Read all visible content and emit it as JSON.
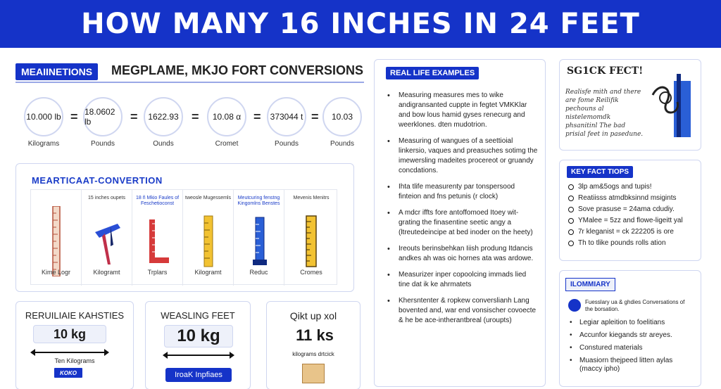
{
  "page_title": "HOW MANY 16 INCHES IN 24 FEET",
  "section": {
    "tag": "MEAIINETIONS",
    "title": "MEGPLAME, MKJO FORT CONVERSIONS"
  },
  "conversions": [
    {
      "value": "10.000 lb",
      "label": "Kilograms"
    },
    {
      "value": "18.0602 lb",
      "label": "Pounds"
    },
    {
      "value": "1622.93",
      "label": "Ounds"
    },
    {
      "value": "10.08 α",
      "label": "Cromet"
    },
    {
      "value": "373044 t",
      "label": "Pounds"
    },
    {
      "value": "10.03",
      "label": "Pounds"
    }
  ],
  "equals_sign": "=",
  "chart_panel": {
    "title": "MEARTICAAT-CONVERTION",
    "columns": [
      {
        "top": "",
        "bottom": "Kime Logr"
      },
      {
        "top": "15 inches oupets",
        "bottom": "Kilogramt"
      },
      {
        "top": "18 ñ Mkio Faules of Feschetioconst",
        "bottom": "Trplars"
      },
      {
        "top": "tweosle Mugessemls",
        "bottom": "Kilogramt"
      },
      {
        "top": "Meutcuring fenstng Kingomlns Benstes",
        "bottom": "Reduc"
      },
      {
        "top": "Mevenis Menitrs",
        "bottom": "Cromes"
      }
    ]
  },
  "cards": {
    "card1": {
      "title": "RERUILIAIE KAHSTIES",
      "value": "10 kg",
      "sublabel": "Ten Kilograms",
      "badge": "KOKO"
    },
    "card2": {
      "title": "WEASLING FEET",
      "value": "10 kg",
      "button": "IroaK Inpfiaes"
    },
    "card3": {
      "title": "Qikt up xol",
      "value": "11 ks",
      "sublabel": "kilograms drtcick"
    }
  },
  "examples": {
    "tag": "REAL LIFE EXAMPLES",
    "items": [
      "Measuring measures mes to wike andigransanted cuppte in fegtet VMKKlar and bow lous hamid gyses renecurg and weerklones. dten mudotrion.",
      "Measuring of wangues of a seettioial linkersio, vaques and preasuches sotimg the imewersling madeites procereot or gruandy concdations.",
      "Ihta tlife measurenty par tonspersood finteion and fns petunis (r clock)",
      "A mdcr iffts fore antoffomoed Itoey wit- grating the finasentine seetic angy a (ltreutedeincipe at bed inoder on the heety)",
      "Ireouts berinsbehkan Iiish produng Itdancis andkes ah was oic hornes ata was ardowe.",
      "Measurizer inper copoolcing immads lied tine dat ik ke ahrmatets",
      "Khersntenter & ropkew converslianh Lang bovented and, war end vonsischer covoecte & he be ace-intherantbreal (uroupts)"
    ]
  },
  "stock_fact": {
    "title": "SG1CK FECT!",
    "text": "Realisfe mith and there are fome Reilifik pechouns al nistelemomdk phsanitinl The bad prisial feet in pasedune."
  },
  "key_facts": {
    "tag": "KEY FACT TIOPS",
    "items": [
      "3lp am&5ogs and tupis!",
      "Reatiisss atmdbksinnd msigints",
      "Sove prasuse = 24ama cdudiy.",
      "YMalee = 5zz and flowe-ligeitt yal",
      "7r kleganist = ck 222205 is ore",
      "Th to tlike pounds rolls ation"
    ]
  },
  "summary": {
    "tag": "ILOMMIARY",
    "intro": "Fuesslary ua & ghdies Conversations of the borsation.",
    "items": [
      "Legiar apleition to foelitians",
      "Accunfor kiegands str areyes.",
      "Constured materials",
      "Muasiorn thejpeed litten aylas (maccy ipho)"
    ]
  },
  "colors": {
    "accent": "#1533c8",
    "border": "#cfd6f0"
  }
}
